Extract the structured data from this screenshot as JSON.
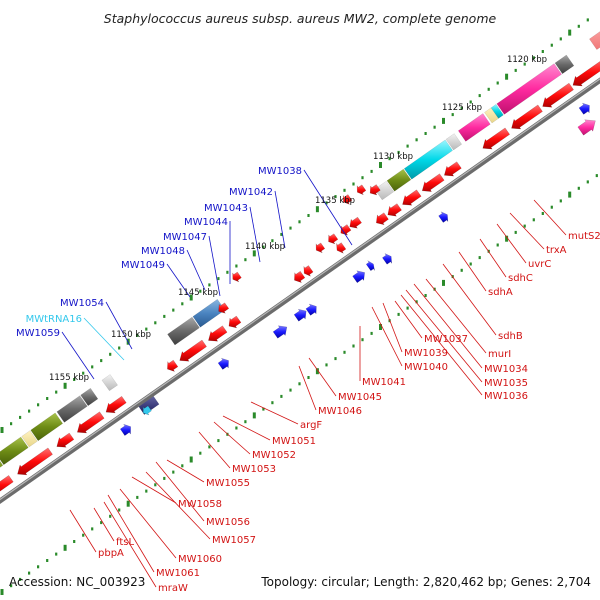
{
  "title": "Staphylococcus aureus subsp. aureus MW2, complete genome",
  "footer": {
    "accession": "Accession: NC_003923",
    "topology": "Topology: circular; Length: 2,820,462 bp; Genes: 2,704"
  },
  "colors": {
    "backbone": "#8a8a8a",
    "forward_gene": "#1a1aff",
    "reverse_gene": "#ff0a0a",
    "trna": "#33c8ec",
    "ruler_dots": "#2a8a2a",
    "cog_green": "#6e8c16",
    "cog_magenta": "#ff2aa0",
    "cog_cyan": "#00d8e8",
    "cog_grey": "#6a6a6a",
    "cog_steelblue": "#4a84c0"
  },
  "ruler_ticks": [
    {
      "label": "1120 kbp"
    },
    {
      "label": "1125 kbp"
    },
    {
      "label": "1130 kbp"
    },
    {
      "label": "1135 kbp"
    },
    {
      "label": "1140 kbp"
    },
    {
      "label": "1145 kbp"
    },
    {
      "label": "1150 kbp"
    },
    {
      "label": "1155 kbp"
    }
  ],
  "forward_labels": [
    {
      "text": "MW1038",
      "color": "blue"
    },
    {
      "text": "MW1042",
      "color": "blue"
    },
    {
      "text": "MW1043",
      "color": "blue"
    },
    {
      "text": "MW1044",
      "color": "blue"
    },
    {
      "text": "MW1047",
      "color": "blue"
    },
    {
      "text": "MW1048",
      "color": "blue"
    },
    {
      "text": "MW1049",
      "color": "blue"
    },
    {
      "text": "MW1054",
      "color": "blue"
    },
    {
      "text": "MWtRNA16",
      "color": "cyan"
    },
    {
      "text": "MW1059",
      "color": "blue"
    }
  ],
  "reverse_labels": [
    "mutS2",
    "trxA",
    "uvrC",
    "sdhC",
    "sdhA",
    "sdhB",
    "murI",
    "MW1034",
    "MW1035",
    "MW1036",
    "MW1037",
    "MW1039",
    "MW1040",
    "MW1041",
    "MW1045",
    "MW1046",
    "argF",
    "MW1051",
    "MW1052",
    "MW1053",
    "MW1055",
    "MW1056",
    "MW1057",
    "MW1058",
    "MW1060",
    "MW1061",
    "ftsL",
    "pbpA",
    "mraW"
  ]
}
